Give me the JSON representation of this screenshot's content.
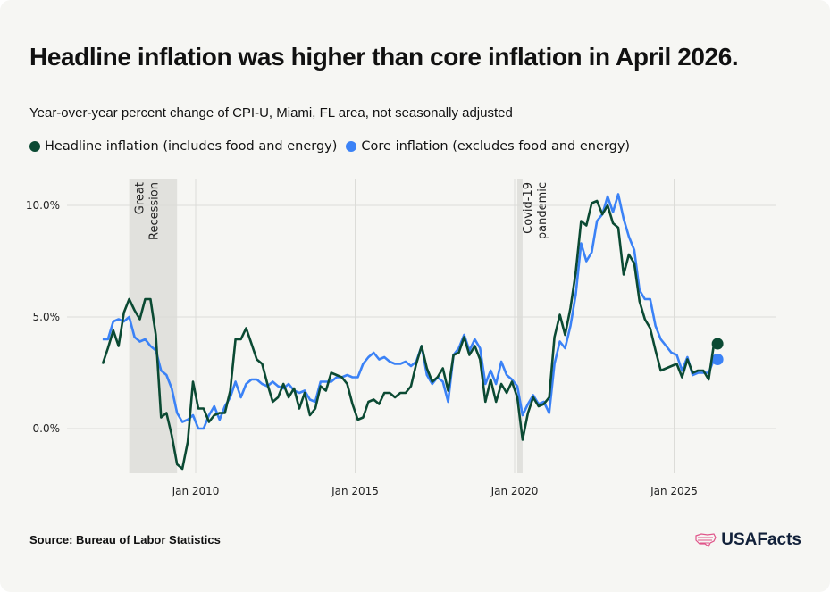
{
  "title": "Headline inflation was higher than core inflation in April 2026.",
  "subtitle": "Year-over-year percent change of CPI-U, Miami, FL area, not seasonally adjusted",
  "source": "Source: Bureau of Labor Statistics",
  "logo": {
    "text": "USAFacts",
    "icon": "us-flag-map-icon"
  },
  "colors": {
    "headline": "#0b4a33",
    "core": "#3b82f6",
    "shade": "#e1e1dd",
    "background": "#f6f6f3"
  },
  "chart_data": {
    "type": "line",
    "title": "Headline inflation was higher than core inflation in April 2026.",
    "subtitle": "Year-over-year percent change of CPI-U, Miami, FL area, not seasonally adjusted",
    "xlabel": "",
    "ylabel": "",
    "xlim": [
      "2007-01",
      "2028-01"
    ],
    "ylim": [
      -2,
      10.5
    ],
    "y_ticks": [
      0,
      5,
      10
    ],
    "y_tick_labels": [
      "0.0%",
      "5.0%",
      "10.0%"
    ],
    "x_ticks": [
      "2010-01",
      "2015-01",
      "2020-01",
      "2025-01"
    ],
    "x_tick_labels": [
      "Jan 2010",
      "Jan 2015",
      "Jan 2020",
      "Jan 2025"
    ],
    "grid": true,
    "legend_position": "top-left",
    "annotations": [
      {
        "label": [
          "Great",
          "Recession"
        ],
        "start": "2007-12",
        "end": "2009-06"
      },
      {
        "label": [
          "Covid-19",
          "pandemic"
        ],
        "start": "2020-02",
        "end": "2020-04"
      }
    ],
    "series": [
      {
        "name": "Headline inflation (includes food and energy)",
        "color": "#0b4a33",
        "points": [
          [
            "2007-02",
            2.9
          ],
          [
            "2007-04",
            3.6
          ],
          [
            "2007-06",
            4.4
          ],
          [
            "2007-08",
            3.7
          ],
          [
            "2007-10",
            5.2
          ],
          [
            "2007-12",
            5.8
          ],
          [
            "2008-02",
            5.3
          ],
          [
            "2008-04",
            4.9
          ],
          [
            "2008-06",
            5.8
          ],
          [
            "2008-08",
            5.8
          ],
          [
            "2008-10",
            4.2
          ],
          [
            "2008-12",
            0.5
          ],
          [
            "2009-02",
            0.7
          ],
          [
            "2009-04",
            -0.3
          ],
          [
            "2009-06",
            -1.6
          ],
          [
            "2009-08",
            -1.8
          ],
          [
            "2009-10",
            -0.6
          ],
          [
            "2009-12",
            2.1
          ],
          [
            "2010-02",
            0.9
          ],
          [
            "2010-04",
            0.9
          ],
          [
            "2010-06",
            0.3
          ],
          [
            "2010-08",
            0.6
          ],
          [
            "2010-10",
            0.7
          ],
          [
            "2010-12",
            0.7
          ],
          [
            "2011-02",
            1.7
          ],
          [
            "2011-04",
            4.0
          ],
          [
            "2011-06",
            4.0
          ],
          [
            "2011-08",
            4.5
          ],
          [
            "2011-10",
            3.8
          ],
          [
            "2011-12",
            3.1
          ],
          [
            "2012-02",
            2.9
          ],
          [
            "2012-04",
            2.0
          ],
          [
            "2012-06",
            1.2
          ],
          [
            "2012-08",
            1.4
          ],
          [
            "2012-10",
            2.0
          ],
          [
            "2012-12",
            1.4
          ],
          [
            "2013-02",
            1.8
          ],
          [
            "2013-04",
            0.9
          ],
          [
            "2013-06",
            1.6
          ],
          [
            "2013-08",
            0.6
          ],
          [
            "2013-10",
            0.9
          ],
          [
            "2013-12",
            1.9
          ],
          [
            "2014-02",
            1.7
          ],
          [
            "2014-04",
            2.5
          ],
          [
            "2014-06",
            2.4
          ],
          [
            "2014-08",
            2.3
          ],
          [
            "2014-10",
            2.0
          ],
          [
            "2014-12",
            1.1
          ],
          [
            "2015-02",
            0.4
          ],
          [
            "2015-04",
            0.5
          ],
          [
            "2015-06",
            1.2
          ],
          [
            "2015-08",
            1.3
          ],
          [
            "2015-10",
            1.1
          ],
          [
            "2015-12",
            1.6
          ],
          [
            "2016-02",
            1.6
          ],
          [
            "2016-04",
            1.4
          ],
          [
            "2016-06",
            1.6
          ],
          [
            "2016-08",
            1.6
          ],
          [
            "2016-10",
            1.9
          ],
          [
            "2016-12",
            2.9
          ],
          [
            "2017-02",
            3.7
          ],
          [
            "2017-04",
            2.7
          ],
          [
            "2017-06",
            2.1
          ],
          [
            "2017-08",
            2.3
          ],
          [
            "2017-10",
            2.7
          ],
          [
            "2017-12",
            1.7
          ],
          [
            "2018-02",
            3.3
          ],
          [
            "2018-04",
            3.4
          ],
          [
            "2018-06",
            4.1
          ],
          [
            "2018-08",
            3.3
          ],
          [
            "2018-10",
            3.7
          ],
          [
            "2018-12",
            3.1
          ],
          [
            "2019-02",
            1.2
          ],
          [
            "2019-04",
            2.2
          ],
          [
            "2019-06",
            1.2
          ],
          [
            "2019-08",
            2.0
          ],
          [
            "2019-10",
            1.6
          ],
          [
            "2019-12",
            2.1
          ],
          [
            "2020-02",
            1.4
          ],
          [
            "2020-04",
            -0.5
          ],
          [
            "2020-06",
            0.7
          ],
          [
            "2020-08",
            1.4
          ],
          [
            "2020-10",
            1.0
          ],
          [
            "2020-12",
            1.1
          ],
          [
            "2021-02",
            1.4
          ],
          [
            "2021-04",
            4.1
          ],
          [
            "2021-06",
            5.1
          ],
          [
            "2021-08",
            4.2
          ],
          [
            "2021-10",
            5.4
          ],
          [
            "2021-12",
            7.0
          ],
          [
            "2022-02",
            9.3
          ],
          [
            "2022-04",
            9.1
          ],
          [
            "2022-06",
            10.1
          ],
          [
            "2022-08",
            10.2
          ],
          [
            "2022-10",
            9.6
          ],
          [
            "2022-12",
            10.0
          ],
          [
            "2023-02",
            9.2
          ],
          [
            "2023-04",
            9.0
          ],
          [
            "2023-06",
            6.9
          ],
          [
            "2023-08",
            7.8
          ],
          [
            "2023-10",
            7.4
          ],
          [
            "2023-12",
            5.7
          ],
          [
            "2024-02",
            4.9
          ],
          [
            "2024-04",
            4.5
          ],
          [
            "2024-06",
            3.5
          ],
          [
            "2024-08",
            2.6
          ],
          [
            "2024-10",
            2.7
          ],
          [
            "2024-12",
            2.8
          ],
          [
            "2025-02",
            2.9
          ],
          [
            "2025-04",
            2.3
          ],
          [
            "2025-06",
            3.1
          ],
          [
            "2025-08",
            2.5
          ],
          [
            "2025-10",
            2.6
          ],
          [
            "2025-12",
            2.6
          ],
          [
            "2026-02",
            2.2
          ],
          [
            "2026-04",
            3.8
          ]
        ]
      },
      {
        "name": "Core inflation (excludes food and energy)",
        "color": "#3b82f6",
        "points": [
          [
            "2007-02",
            4.0
          ],
          [
            "2007-04",
            4.0
          ],
          [
            "2007-06",
            4.8
          ],
          [
            "2007-08",
            4.9
          ],
          [
            "2007-10",
            4.8
          ],
          [
            "2007-12",
            5.0
          ],
          [
            "2008-02",
            4.1
          ],
          [
            "2008-04",
            3.9
          ],
          [
            "2008-06",
            4.0
          ],
          [
            "2008-08",
            3.7
          ],
          [
            "2008-10",
            3.5
          ],
          [
            "2008-12",
            2.6
          ],
          [
            "2009-02",
            2.4
          ],
          [
            "2009-04",
            1.8
          ],
          [
            "2009-06",
            0.7
          ],
          [
            "2009-08",
            0.3
          ],
          [
            "2009-10",
            0.4
          ],
          [
            "2009-12",
            0.6
          ],
          [
            "2010-02",
            0.0
          ],
          [
            "2010-04",
            0.0
          ],
          [
            "2010-06",
            0.6
          ],
          [
            "2010-08",
            1.0
          ],
          [
            "2010-10",
            0.4
          ],
          [
            "2010-12",
            1.0
          ],
          [
            "2011-02",
            1.4
          ],
          [
            "2011-04",
            2.1
          ],
          [
            "2011-06",
            1.4
          ],
          [
            "2011-08",
            2.0
          ],
          [
            "2011-10",
            2.2
          ],
          [
            "2011-12",
            2.2
          ],
          [
            "2012-02",
            2.0
          ],
          [
            "2012-04",
            1.9
          ],
          [
            "2012-06",
            2.1
          ],
          [
            "2012-08",
            1.9
          ],
          [
            "2012-10",
            1.8
          ],
          [
            "2012-12",
            2.0
          ],
          [
            "2013-02",
            1.7
          ],
          [
            "2013-04",
            1.6
          ],
          [
            "2013-06",
            1.7
          ],
          [
            "2013-08",
            1.3
          ],
          [
            "2013-10",
            1.2
          ],
          [
            "2013-12",
            2.1
          ],
          [
            "2014-02",
            2.1
          ],
          [
            "2014-04",
            2.1
          ],
          [
            "2014-06",
            2.3
          ],
          [
            "2014-08",
            2.3
          ],
          [
            "2014-10",
            2.4
          ],
          [
            "2014-12",
            2.3
          ],
          [
            "2015-02",
            2.3
          ],
          [
            "2015-04",
            2.9
          ],
          [
            "2015-06",
            3.2
          ],
          [
            "2015-08",
            3.4
          ],
          [
            "2015-10",
            3.1
          ],
          [
            "2015-12",
            3.2
          ],
          [
            "2016-02",
            3.0
          ],
          [
            "2016-04",
            2.9
          ],
          [
            "2016-06",
            2.9
          ],
          [
            "2016-08",
            3.0
          ],
          [
            "2016-10",
            2.8
          ],
          [
            "2016-12",
            3.0
          ],
          [
            "2017-02",
            3.7
          ],
          [
            "2017-04",
            2.4
          ],
          [
            "2017-06",
            2.0
          ],
          [
            "2017-08",
            2.3
          ],
          [
            "2017-10",
            2.1
          ],
          [
            "2017-12",
            1.2
          ],
          [
            "2018-02",
            3.3
          ],
          [
            "2018-04",
            3.6
          ],
          [
            "2018-06",
            4.2
          ],
          [
            "2018-08",
            3.5
          ],
          [
            "2018-10",
            4.0
          ],
          [
            "2018-12",
            3.6
          ],
          [
            "2019-02",
            2.0
          ],
          [
            "2019-04",
            2.6
          ],
          [
            "2019-06",
            2.0
          ],
          [
            "2019-08",
            3.0
          ],
          [
            "2019-10",
            2.4
          ],
          [
            "2019-12",
            2.2
          ],
          [
            "2020-02",
            1.9
          ],
          [
            "2020-04",
            0.6
          ],
          [
            "2020-06",
            1.1
          ],
          [
            "2020-08",
            1.5
          ],
          [
            "2020-10",
            1.1
          ],
          [
            "2020-12",
            1.2
          ],
          [
            "2021-02",
            0.7
          ],
          [
            "2021-04",
            2.9
          ],
          [
            "2021-06",
            3.9
          ],
          [
            "2021-08",
            3.6
          ],
          [
            "2021-10",
            4.6
          ],
          [
            "2021-12",
            6.0
          ],
          [
            "2022-02",
            8.3
          ],
          [
            "2022-04",
            7.5
          ],
          [
            "2022-06",
            7.9
          ],
          [
            "2022-08",
            9.3
          ],
          [
            "2022-10",
            9.6
          ],
          [
            "2022-12",
            10.4
          ],
          [
            "2023-02",
            9.7
          ],
          [
            "2023-04",
            10.5
          ],
          [
            "2023-06",
            9.4
          ],
          [
            "2023-08",
            8.6
          ],
          [
            "2023-10",
            8.0
          ],
          [
            "2023-12",
            6.2
          ],
          [
            "2024-02",
            5.8
          ],
          [
            "2024-04",
            5.8
          ],
          [
            "2024-06",
            4.6
          ],
          [
            "2024-08",
            4.0
          ],
          [
            "2024-10",
            3.7
          ],
          [
            "2024-12",
            3.4
          ],
          [
            "2025-02",
            3.3
          ],
          [
            "2025-04",
            2.6
          ],
          [
            "2025-06",
            3.2
          ],
          [
            "2025-08",
            2.4
          ],
          [
            "2025-10",
            2.5
          ],
          [
            "2025-12",
            2.5
          ],
          [
            "2026-02",
            2.5
          ],
          [
            "2026-04",
            3.1
          ]
        ]
      }
    ]
  }
}
